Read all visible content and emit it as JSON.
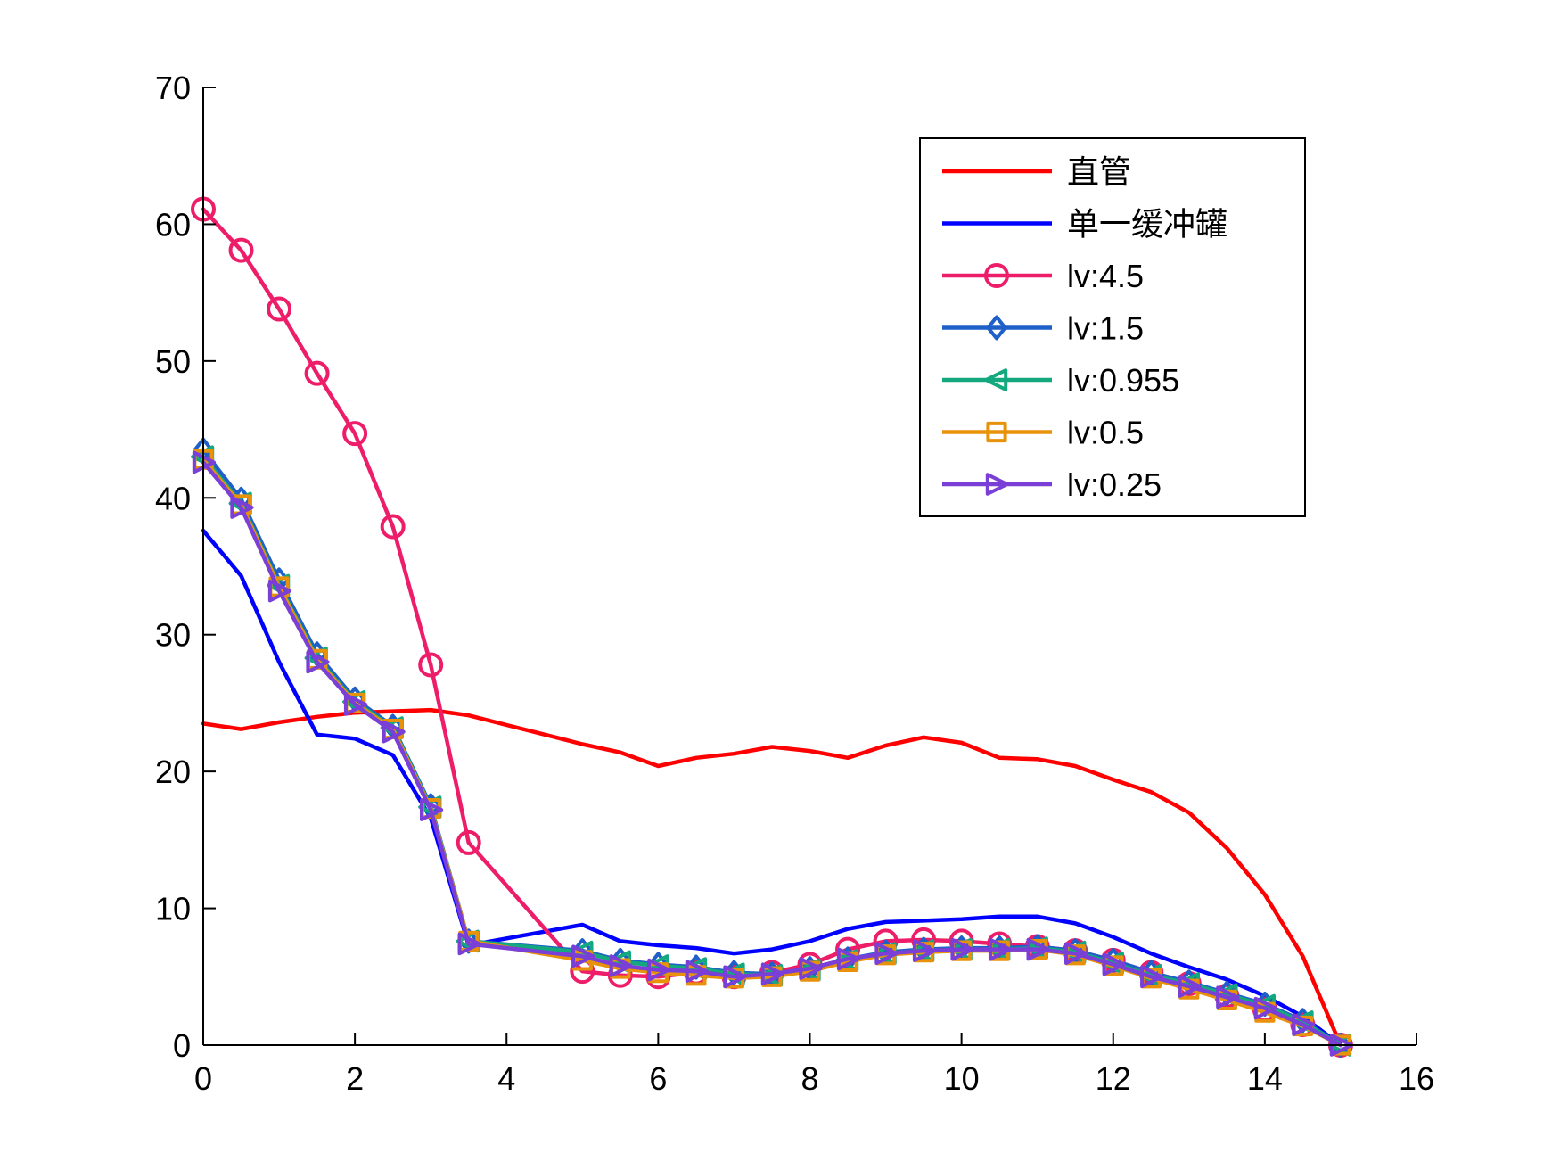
{
  "chart_data": {
    "type": "line",
    "title": "",
    "xlabel": "",
    "ylabel": "",
    "xlim": [
      0,
      16
    ],
    "ylim": [
      0,
      70
    ],
    "xticks": [
      0,
      2,
      4,
      6,
      8,
      10,
      12,
      14,
      16
    ],
    "yticks": [
      0,
      10,
      20,
      30,
      40,
      50,
      60,
      70
    ],
    "xtick_labels": [
      "0",
      "2",
      "4",
      "6",
      "8",
      "10",
      "12",
      "14",
      "16"
    ],
    "ytick_labels": [
      "0",
      "10",
      "20",
      "30",
      "40",
      "50",
      "60",
      "70"
    ],
    "grid": false,
    "legend_position": "top-right",
    "series": [
      {
        "name": "直管",
        "color": "#ff0000",
        "marker": "none",
        "x": [
          0,
          0.5,
          1,
          1.5,
          2,
          2.5,
          3,
          3.5,
          4,
          4.5,
          5,
          5.5,
          6,
          6.5,
          7,
          7.5,
          8,
          8.5,
          9,
          9.5,
          10,
          10.5,
          11,
          11.5,
          12,
          12.5,
          13,
          13.5,
          14,
          14.5,
          15
        ],
        "y": [
          23.5,
          23.1,
          23.6,
          24.0,
          24.3,
          24.4,
          24.5,
          24.1,
          23.4,
          22.7,
          22.0,
          21.4,
          20.4,
          21.0,
          21.3,
          21.8,
          21.5,
          21.0,
          21.9,
          22.5,
          22.1,
          21.0,
          20.9,
          20.4,
          19.4,
          18.5,
          17.0,
          14.4,
          11.0,
          6.5,
          0
        ]
      },
      {
        "name": "单一缓冲罐",
        "color": "#0000ff",
        "marker": "none",
        "x": [
          0,
          0.5,
          1,
          1.5,
          2,
          2.5,
          3,
          3.5,
          4,
          4.5,
          5,
          5.5,
          6,
          6.5,
          7,
          7.5,
          8,
          8.5,
          9,
          9.5,
          10,
          10.5,
          11,
          11.5,
          12,
          12.5,
          13,
          13.5,
          14,
          14.5,
          15
        ],
        "y": [
          37.6,
          34.3,
          28.0,
          22.7,
          22.4,
          21.2,
          16.6,
          7.3,
          7.8,
          8.3,
          8.8,
          7.6,
          7.3,
          7.1,
          6.7,
          7.0,
          7.6,
          8.5,
          9.0,
          9.1,
          9.2,
          9.4,
          9.4,
          8.9,
          7.9,
          6.7,
          5.7,
          4.8,
          3.6,
          2.1,
          0
        ]
      },
      {
        "name": "lv:4.5",
        "color": "#ee1d6a",
        "marker": "circle",
        "x": [
          0,
          0.5,
          1,
          1.5,
          2,
          2.5,
          3,
          3.5,
          5,
          5.5,
          6,
          6.5,
          7,
          7.5,
          8,
          8.5,
          9,
          9.5,
          10,
          10.5,
          11,
          11.5,
          12,
          12.5,
          13,
          13.5,
          14,
          14.5,
          15
        ],
        "y": [
          61.1,
          58.1,
          53.8,
          49.1,
          44.7,
          37.9,
          27.8,
          14.8,
          5.4,
          5.1,
          5.0,
          5.3,
          5.0,
          5.3,
          5.9,
          7.0,
          7.6,
          7.7,
          7.6,
          7.4,
          7.2,
          6.9,
          6.2,
          5.3,
          4.5,
          3.6,
          2.6,
          1.5,
          0
        ]
      },
      {
        "name": "lv:1.5",
        "color": "#1f5fc8",
        "marker": "diamond",
        "x": [
          0,
          0.5,
          1,
          1.5,
          2,
          2.5,
          3,
          3.5,
          5,
          5.5,
          6,
          6.5,
          7,
          7.5,
          8,
          8.5,
          9,
          9.5,
          10,
          10.5,
          11,
          11.5,
          12,
          12.5,
          13,
          13.5,
          14,
          14.5,
          15
        ],
        "y": [
          43.5,
          39.9,
          34.0,
          28.6,
          25.3,
          23.3,
          17.5,
          7.6,
          6.9,
          6.2,
          5.9,
          5.7,
          5.3,
          5.2,
          5.6,
          6.3,
          6.8,
          7.0,
          7.1,
          7.1,
          7.2,
          6.9,
          6.2,
          5.3,
          4.6,
          3.8,
          3.0,
          1.8,
          0
        ]
      },
      {
        "name": "lv:0.955",
        "color": "#13a87e",
        "marker": "triangle-left",
        "x": [
          0,
          0.5,
          1,
          1.5,
          2,
          2.5,
          3,
          3.5,
          5,
          5.5,
          6,
          6.5,
          7,
          7.5,
          8,
          8.5,
          9,
          9.5,
          10,
          10.5,
          11,
          11.5,
          12,
          12.5,
          13,
          13.5,
          14,
          14.5,
          15
        ],
        "y": [
          43.0,
          39.6,
          33.6,
          28.3,
          25.1,
          23.2,
          17.4,
          7.6,
          6.8,
          6.1,
          5.8,
          5.6,
          5.2,
          5.1,
          5.5,
          6.2,
          6.7,
          6.9,
          7.0,
          7.0,
          7.1,
          6.8,
          6.0,
          5.1,
          4.5,
          3.7,
          2.9,
          1.7,
          0
        ]
      },
      {
        "name": "lv:0.5",
        "color": "#e8920c",
        "marker": "square",
        "x": [
          0,
          0.5,
          1,
          1.5,
          2,
          2.5,
          3,
          3.5,
          5,
          5.5,
          6,
          6.5,
          7,
          7.5,
          8,
          8.5,
          9,
          9.5,
          10,
          10.5,
          11,
          11.5,
          12,
          12.5,
          13,
          13.5,
          14,
          14.5,
          15
        ],
        "y": [
          42.8,
          39.5,
          33.5,
          28.2,
          25.0,
          23.1,
          17.3,
          7.6,
          6.2,
          5.6,
          5.3,
          5.1,
          4.9,
          5.0,
          5.4,
          6.1,
          6.6,
          6.8,
          6.9,
          6.9,
          7.0,
          6.6,
          5.8,
          4.9,
          4.1,
          3.3,
          2.4,
          1.4,
          0
        ]
      },
      {
        "name": "lv:0.25",
        "color": "#7a3fd6",
        "marker": "triangle-right",
        "x": [
          0,
          0.5,
          1,
          1.5,
          2,
          2.5,
          3,
          3.5,
          5,
          5.5,
          6,
          6.5,
          7,
          7.5,
          8,
          8.5,
          9,
          9.5,
          10,
          10.5,
          11,
          11.5,
          12,
          12.5,
          13,
          13.5,
          14,
          14.5,
          15
        ],
        "y": [
          42.6,
          39.3,
          33.2,
          28.0,
          24.9,
          22.9,
          17.2,
          7.4,
          6.5,
          5.8,
          5.5,
          5.4,
          5.0,
          5.2,
          5.6,
          6.3,
          6.7,
          6.9,
          7.0,
          7.0,
          7.0,
          6.7,
          5.9,
          5.0,
          4.3,
          3.5,
          2.7,
          1.5,
          0
        ]
      }
    ]
  }
}
